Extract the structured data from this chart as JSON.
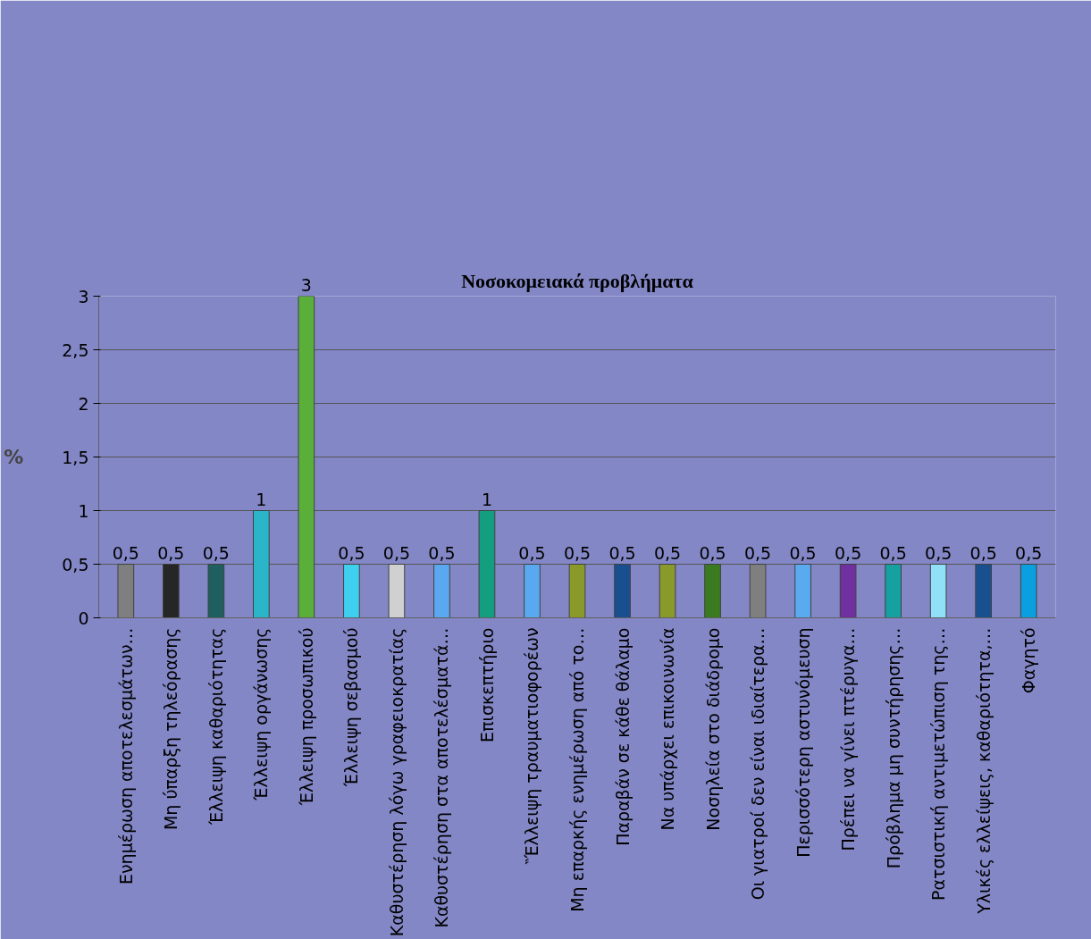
{
  "chart_data": {
    "type": "bar",
    "title": "Νοσοκομειακά προβλήματα",
    "ylabel": "%",
    "categories": [
      "Ενημέρωση αποτελεσμάτων…",
      "Μη ύπαρξη τηλεόρασης",
      "Έλλειψη καθαριότητας",
      "Έλλειψη οργάνωσης",
      "Έλλειψη προσωπικού",
      "Έλλειψη σεβασμού",
      "Καθυστέρηση λόγω γραφειοκρατίας",
      "Καθυστέρηση στα αποτελέσματά…",
      "Επισκεπτήριο",
      "‶Έλλειψη τραυματιοφορέων",
      "Μη επαρκής ενημέρωση από το…",
      "Παραβάν σε κάθε θάλαμο",
      "Να υπάρχει επικοινωνία",
      "Νοσηλεία στο διάδρομο",
      "Οι γιατροί δεν είναι ιδιαίτερα…",
      "Περισσότερη αστυνόμευση",
      "Πρέπει να γίνει πτέρυγα…",
      "Πρόβλημα μη συντήρησης…",
      "Ρατσιστική αντιμετώπιση της…",
      "Υλικές ελλείψεις, καθαριότητα,…",
      "Φαγητό"
    ],
    "values": [
      0.5,
      0.5,
      0.5,
      1,
      3,
      0.5,
      0.5,
      0.5,
      1,
      0.5,
      0.5,
      0.5,
      0.5,
      0.5,
      0.5,
      0.5,
      0.5,
      0.5,
      0.5,
      0.5,
      0.5
    ],
    "value_labels": [
      "0,5",
      "0,5",
      "0,5",
      "1",
      "3",
      "0,5",
      "0,5",
      "0,5",
      "1",
      "0,5",
      "0,5",
      "0,5",
      "0,5",
      "0,5",
      "0,5",
      "0,5",
      "0,5",
      "0,5",
      "0,5",
      "0,5",
      "0,5"
    ],
    "colors": [
      "#7f7f7f",
      "#262626",
      "#1f5f5f",
      "#2ab5c8",
      "#5aae3a",
      "#3fd0f0",
      "#d0d0d0",
      "#5aa8f0",
      "#139f7f",
      "#5aa8f0",
      "#8a9a2a",
      "#1a4f8f",
      "#8a9a2a",
      "#3a7a20",
      "#7f7f7f",
      "#5aaaf0",
      "#7030a0",
      "#16a0a0",
      "#90e0f8",
      "#1a4f8f",
      "#0aa0e0"
    ],
    "ylim": [
      0,
      3
    ],
    "yticks": [
      0,
      {
        "value": 0.5,
        "label": "0,5"
      },
      1,
      {
        "value": 1.5,
        "label": "1,5"
      },
      2,
      {
        "value": 2.5,
        "label": "2,5"
      },
      3
    ],
    "grid": "y"
  }
}
